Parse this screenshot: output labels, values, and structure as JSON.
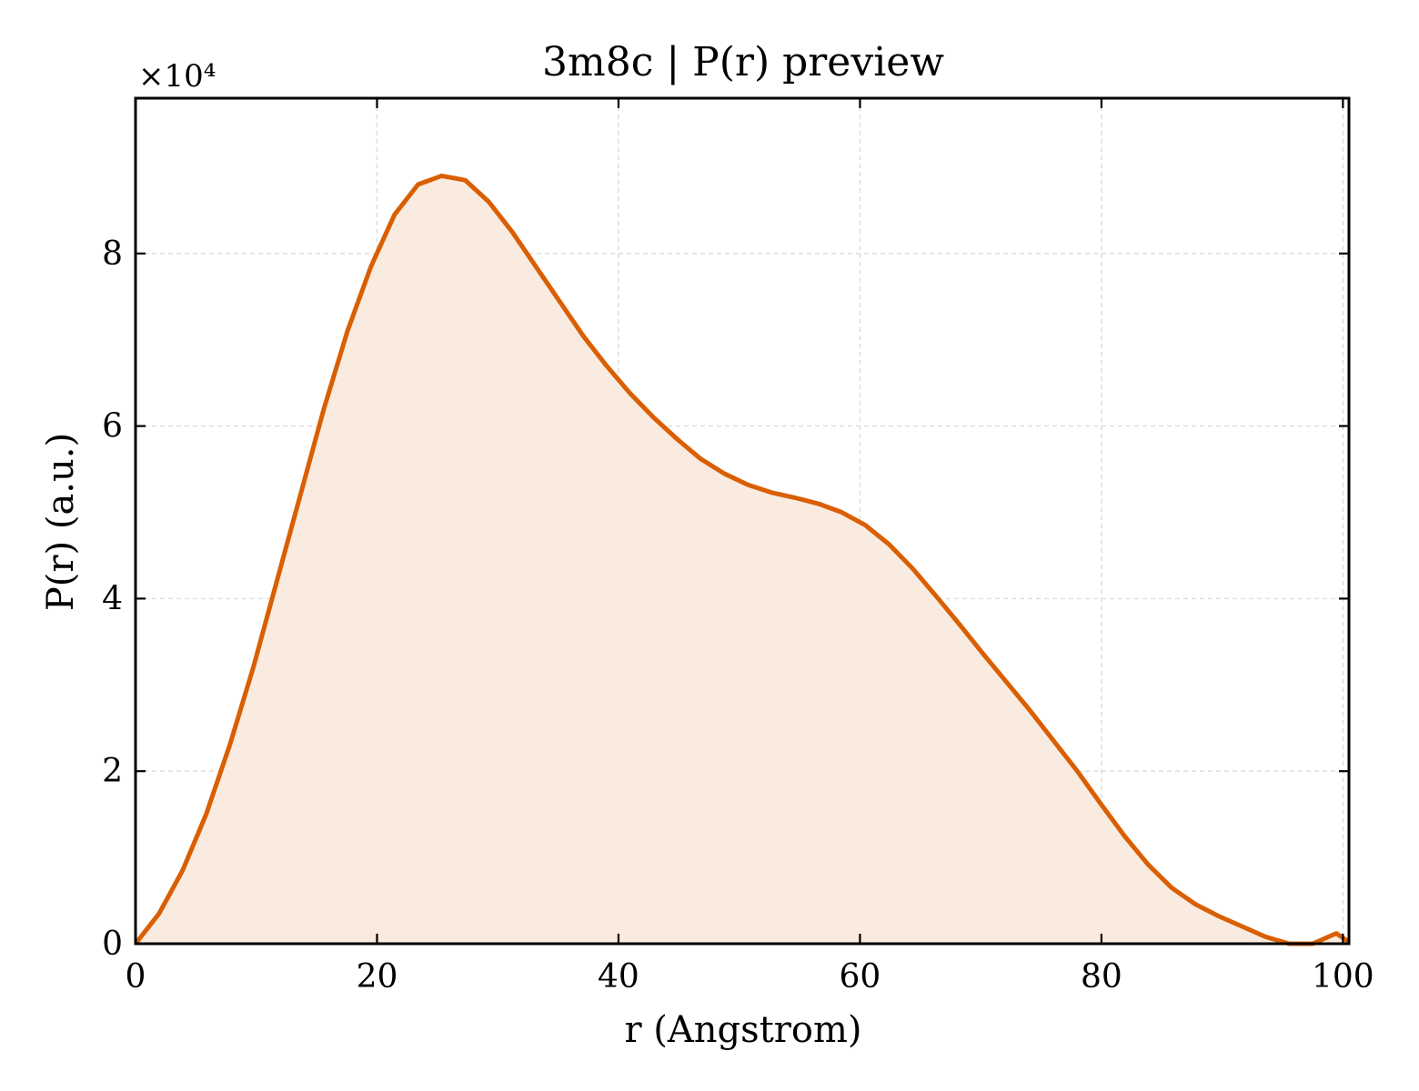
{
  "chart_data": {
    "type": "area",
    "title": "3m8c | P(r) preview",
    "xlabel": "r (Angstrom)",
    "ylabel": "P(r) (a.u.)",
    "y_multiplier_label": "×10⁴",
    "xlim": [
      0,
      100.5
    ],
    "ylim": [
      0,
      9.8
    ],
    "x_ticks": [
      0,
      20,
      40,
      60,
      80,
      100
    ],
    "x_tick_labels": [
      "0",
      "20",
      "40",
      "60",
      "80",
      "100"
    ],
    "y_ticks": [
      0,
      2,
      4,
      6,
      8
    ],
    "y_tick_labels": [
      "0",
      "2",
      "4",
      "6",
      "8"
    ],
    "grid": true,
    "colors": {
      "line": "#d95f02",
      "fill": "#f9ebe0"
    },
    "series": [
      {
        "x": [
          0,
          1.95,
          3.9,
          5.85,
          7.8,
          9.75,
          11.7,
          13.65,
          15.6,
          17.55,
          19.5,
          21.45,
          23.4,
          25.35,
          27.3,
          29.25,
          31.2,
          33.15,
          35.1,
          37.05,
          39.0,
          40.95,
          42.9,
          44.85,
          46.8,
          48.75,
          50.7,
          52.65,
          54.6,
          56.55,
          58.5,
          60.45,
          62.4,
          64.35,
          66.3,
          68.25,
          70.2,
          72.15,
          74.1,
          76.05,
          78.0,
          79.95,
          81.9,
          83.85,
          85.8,
          87.75,
          89.7,
          91.65,
          93.6,
          95.55,
          97.5,
          99.45,
          100.5
        ],
        "values": [
          0.0,
          0.35,
          0.85,
          1.5,
          2.3,
          3.2,
          4.2,
          5.2,
          6.2,
          7.1,
          7.85,
          8.45,
          8.8,
          8.9,
          8.85,
          8.6,
          8.25,
          7.85,
          7.45,
          7.05,
          6.7,
          6.38,
          6.1,
          5.85,
          5.62,
          5.45,
          5.32,
          5.23,
          5.17,
          5.1,
          5.0,
          4.85,
          4.63,
          4.35,
          4.03,
          3.7,
          3.36,
          3.03,
          2.7,
          2.35,
          2.0,
          1.62,
          1.25,
          0.92,
          0.65,
          0.46,
          0.32,
          0.2,
          0.08,
          0.0,
          0.0,
          0.12,
          0.02
        ]
      }
    ]
  }
}
